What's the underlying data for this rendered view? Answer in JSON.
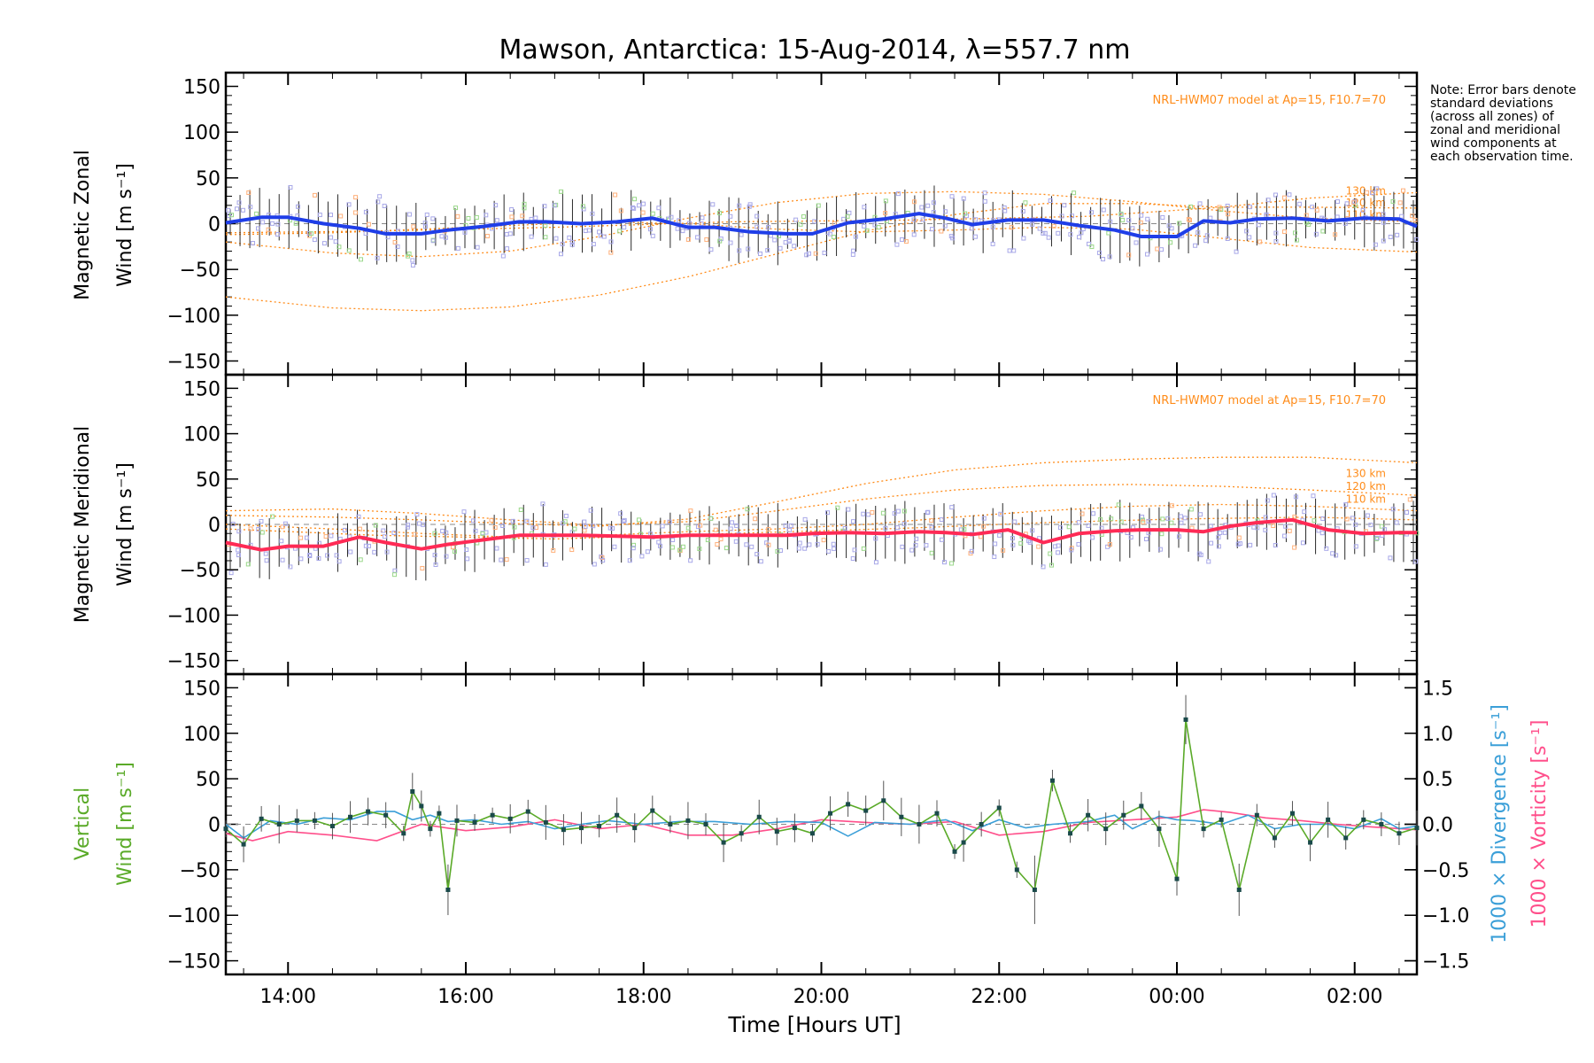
{
  "title": "Mawson, Antarctica: 15-Aug-2014, λ=557.7 nm",
  "note": "Note: Error bars denote standard deviations (across all zones) of zonal and meridional wind components at each observation time.",
  "xaxis": {
    "label": "Time [Hours UT]",
    "range_hours": [
      13.3,
      26.7
    ],
    "ticks": [
      "14:00",
      "16:00",
      "18:00",
      "20:00",
      "22:00",
      "00:00",
      "02:00"
    ],
    "tick_hours": [
      14,
      16,
      18,
      20,
      22,
      24,
      26
    ]
  },
  "colors": {
    "zonal": "#1f3ee8",
    "zonal_light": "#4ea8ff",
    "meridional": "#ff2a55",
    "vertical": "#5aaa28",
    "divergence": "#3b9fd8",
    "vorticity": "#ff4f8b",
    "model": "#ff8c1a",
    "scatter": "#a8a8e8",
    "errorbar": "#2a2a2a"
  },
  "panels": {
    "zonal": {
      "ylabel1": "Magnetic Zonal",
      "ylabel2": "Wind [m s⁻¹]",
      "model_label": "NRL-HWM07 model at Ap=15, F10.7=70",
      "model_alts": [
        "130 km",
        "120 km",
        "110 km"
      ]
    },
    "meridional": {
      "ylabel1": "Magnetic Meridional",
      "ylabel2": "Wind [m s⁻¹]",
      "model_label": "NRL-HWM07 model at Ap=15, F10.7=70",
      "model_alts": [
        "130 km",
        "120 km",
        "110 km"
      ]
    },
    "vertical": {
      "ylabel1": "Vertical",
      "ylabel2": "Wind [m s⁻¹]",
      "right_label_div": "1000 × Divergence [s⁻¹]",
      "right_label_vort": "1000 × Vorticity [s⁻¹]"
    }
  },
  "yticks_left": [
    "150",
    "100",
    "50",
    "0",
    "−50",
    "−100",
    "−150"
  ],
  "yticks_right": [
    "1.5",
    "1.0",
    "0.5",
    "0.0",
    "−0.5",
    "−1.0",
    "−1.5"
  ],
  "chart_data": [
    {
      "type": "line",
      "panel": "zonal",
      "ylim": [
        -165,
        165
      ],
      "series": [
        {
          "key": "zonal_mean",
          "x_hours": [
            13.3,
            13.7,
            14.0,
            14.4,
            14.8,
            15.1,
            15.5,
            15.8,
            16.2,
            16.6,
            16.9,
            17.3,
            17.7,
            18.1,
            18.5,
            18.8,
            19.2,
            19.6,
            19.9,
            20.3,
            20.7,
            21.1,
            21.4,
            21.7,
            22.1,
            22.5,
            22.9,
            23.3,
            23.6,
            24.0,
            24.3,
            24.6,
            24.9,
            25.3,
            25.7,
            26.1,
            26.5,
            26.7
          ],
          "values": [
            1,
            7,
            7,
            0,
            -5,
            -11,
            -11,
            -7,
            -3,
            2,
            2,
            0,
            2,
            6,
            -4,
            -4,
            -9,
            -11,
            -11,
            1,
            5,
            11,
            6,
            -1,
            4,
            4,
            -2,
            -7,
            -14,
            -14,
            3,
            1,
            5,
            6,
            3,
            6,
            5,
            -3
          ]
        },
        {
          "key": "model_130",
          "x_hours": [
            13.3,
            14.5,
            15.5,
            16.5,
            17.5,
            18.5,
            19.5,
            20.5,
            21.5,
            22.5,
            23.5,
            24.5,
            25.5,
            26.7
          ],
          "values": [
            -80,
            -92,
            -95,
            -91,
            -78,
            -58,
            -33,
            -8,
            10,
            22,
            22,
            18,
            18,
            17
          ]
        },
        {
          "key": "model_120",
          "x_hours": [
            13.3,
            14.5,
            15.5,
            16.5,
            17.5,
            18.5,
            19.5,
            20.5,
            21.5,
            22.5,
            23.5,
            24.5,
            25.5,
            26.7
          ],
          "values": [
            -20,
            -32,
            -36,
            -30,
            -14,
            6,
            23,
            33,
            35,
            32,
            24,
            14,
            6,
            2
          ]
        },
        {
          "key": "model_110",
          "x_hours": [
            13.3,
            14.5,
            15.5,
            16.5,
            17.5,
            18.5,
            19.5,
            20.5,
            21.5,
            22.5,
            23.5,
            24.5,
            25.5,
            26.7
          ],
          "values": [
            -12,
            -10,
            -6,
            -2,
            2,
            0,
            -6,
            -9,
            -7,
            -4,
            -6,
            -16,
            -26,
            -31
          ]
        },
        {
          "key": "model_extra",
          "x_hours": [
            13.3,
            15.0,
            17.0,
            19.0,
            21.0,
            23.0,
            24.5,
            25.5,
            26.7
          ],
          "values": [
            -10,
            -8,
            -4,
            2,
            4,
            8,
            18,
            28,
            34
          ]
        }
      ]
    },
    {
      "type": "line",
      "panel": "meridional",
      "ylim": [
        -165,
        165
      ],
      "series": [
        {
          "key": "meridional_mean",
          "x_hours": [
            13.3,
            13.7,
            14.0,
            14.4,
            14.8,
            15.1,
            15.5,
            15.8,
            16.2,
            16.6,
            16.9,
            17.3,
            17.7,
            18.1,
            18.5,
            18.8,
            19.2,
            19.6,
            19.9,
            20.3,
            20.7,
            21.1,
            21.4,
            21.7,
            22.1,
            22.5,
            22.9,
            23.3,
            23.6,
            24.0,
            24.3,
            24.6,
            24.9,
            25.3,
            25.7,
            26.1,
            26.5,
            26.7
          ],
          "values": [
            -20,
            -28,
            -24,
            -24,
            -14,
            -20,
            -27,
            -22,
            -17,
            -12,
            -12,
            -12,
            -13,
            -14,
            -12,
            -12,
            -12,
            -12,
            -10,
            -9,
            -10,
            -8,
            -9,
            -11,
            -6,
            -20,
            -10,
            -7,
            -6,
            -6,
            -8,
            -2,
            2,
            5,
            -6,
            -10,
            -9,
            -9
          ]
        },
        {
          "key": "model_130",
          "x_hours": [
            13.3,
            14.5,
            15.5,
            16.5,
            17.5,
            18.5,
            19.5,
            20.5,
            21.5,
            22.5,
            23.5,
            24.5,
            25.5,
            26.7
          ],
          "values": [
            10,
            8,
            5,
            1,
            -2,
            6,
            25,
            45,
            60,
            68,
            72,
            74,
            74,
            68
          ]
        },
        {
          "key": "model_120",
          "x_hours": [
            13.3,
            14.5,
            15.5,
            16.5,
            17.5,
            18.5,
            19.5,
            20.5,
            21.5,
            22.5,
            23.5,
            24.5,
            25.5,
            26.7
          ],
          "values": [
            15,
            17,
            12,
            5,
            -1,
            3,
            15,
            28,
            38,
            43,
            44,
            42,
            38,
            32
          ]
        },
        {
          "key": "model_110",
          "x_hours": [
            13.3,
            14.5,
            15.5,
            16.5,
            17.5,
            18.5,
            19.5,
            20.5,
            21.5,
            22.5,
            23.5,
            24.5,
            25.5,
            26.7
          ],
          "values": [
            0,
            -5,
            -10,
            -14,
            -12,
            -8,
            -5,
            0,
            8,
            15,
            20,
            22,
            20,
            15
          ]
        },
        {
          "key": "model_extra",
          "x_hours": [
            13.3,
            15.0,
            17.0,
            19.0,
            21.0,
            22.5,
            24.0,
            25.5,
            26.7
          ],
          "values": [
            -5,
            -12,
            -16,
            -10,
            -4,
            2,
            6,
            8,
            5
          ]
        }
      ]
    },
    {
      "type": "line",
      "panel": "vertical",
      "ylim": [
        -165,
        165
      ],
      "right_ylim": [
        -1.65,
        1.65
      ],
      "series": [
        {
          "key": "vertical_wind",
          "x_hours": [
            13.3,
            13.5,
            13.7,
            13.9,
            14.1,
            14.3,
            14.5,
            14.7,
            14.9,
            15.1,
            15.3,
            15.4,
            15.5,
            15.6,
            15.7,
            15.8,
            15.9,
            16.1,
            16.3,
            16.5,
            16.7,
            16.9,
            17.1,
            17.3,
            17.5,
            17.7,
            17.9,
            18.1,
            18.3,
            18.5,
            18.7,
            18.9,
            19.1,
            19.3,
            19.5,
            19.7,
            19.9,
            20.1,
            20.3,
            20.5,
            20.7,
            20.9,
            21.1,
            21.3,
            21.5,
            21.6,
            21.8,
            22.0,
            22.2,
            22.4,
            22.6,
            22.8,
            23.0,
            23.2,
            23.4,
            23.6,
            23.8,
            24.0,
            24.1,
            24.3,
            24.5,
            24.7,
            24.9,
            25.1,
            25.3,
            25.5,
            25.7,
            25.9,
            26.1,
            26.3,
            26.5,
            26.7
          ],
          "values": [
            -5,
            -22,
            6,
            0,
            4,
            4,
            -2,
            8,
            14,
            10,
            -10,
            36,
            20,
            -5,
            12,
            -72,
            4,
            2,
            10,
            6,
            14,
            2,
            -6,
            -4,
            -2,
            10,
            -4,
            15,
            0,
            4,
            0,
            -20,
            -10,
            8,
            -8,
            -4,
            -10,
            12,
            22,
            15,
            26,
            8,
            0,
            12,
            -30,
            -20,
            0,
            18,
            -50,
            -72,
            48,
            -10,
            10,
            -5,
            10,
            20,
            -5,
            -60,
            115,
            -5,
            5,
            -72,
            10,
            -15,
            12,
            -20,
            5,
            -15,
            5,
            0,
            -10,
            -4
          ]
        },
        {
          "key": "divergence",
          "x_hours": [
            13.3,
            13.5,
            13.8,
            14.1,
            14.4,
            14.7,
            15.0,
            15.2,
            15.4,
            15.6,
            15.8,
            16.1,
            16.4,
            16.7,
            17.0,
            17.3,
            17.6,
            18.0,
            18.4,
            18.8,
            19.2,
            19.6,
            20.0,
            20.3,
            20.6,
            21.0,
            21.4,
            21.7,
            22.0,
            22.3,
            22.6,
            23.0,
            23.3,
            23.5,
            23.8,
            24.0,
            24.2,
            24.5,
            24.8,
            25.1,
            25.4,
            25.7,
            26.0,
            26.3,
            26.5,
            26.7
          ],
          "values": [
            0,
            -0.15,
            0.04,
            0,
            0.07,
            0.05,
            0.14,
            0.14,
            0.05,
            0.1,
            0.03,
            0.05,
            0,
            0.03,
            -0.05,
            0,
            0.04,
            0,
            0.03,
            0.03,
            0,
            0.03,
            0.02,
            -0.13,
            0.02,
            0,
            0.05,
            -0.07,
            0.05,
            -0.04,
            0,
            0.03,
            0.1,
            -0.05,
            0.09,
            0.05,
            0.04,
            0,
            0.1,
            -0.05,
            0,
            0,
            -0.05,
            0.06,
            -0.05,
            -0.02
          ]
        },
        {
          "key": "vorticity",
          "x_hours": [
            13.3,
            13.6,
            14.0,
            14.5,
            15.0,
            15.5,
            16.0,
            16.5,
            17.0,
            17.5,
            18.0,
            18.5,
            19.0,
            19.5,
            20.0,
            20.5,
            21.0,
            21.5,
            22.0,
            22.5,
            23.0,
            23.5,
            24.0,
            24.3,
            24.6,
            25.0,
            25.4,
            25.8,
            26.2,
            26.7
          ],
          "values": [
            -0.1,
            -0.18,
            -0.08,
            -0.12,
            -0.18,
            0,
            -0.07,
            -0.03,
            0.05,
            -0.05,
            0,
            -0.12,
            -0.12,
            -0.05,
            0.05,
            0.02,
            0,
            0.03,
            -0.12,
            -0.08,
            0.02,
            0.05,
            0.08,
            0.16,
            0.13,
            0.07,
            0.04,
            0,
            -0.03,
            -0.06
          ]
        }
      ]
    }
  ]
}
